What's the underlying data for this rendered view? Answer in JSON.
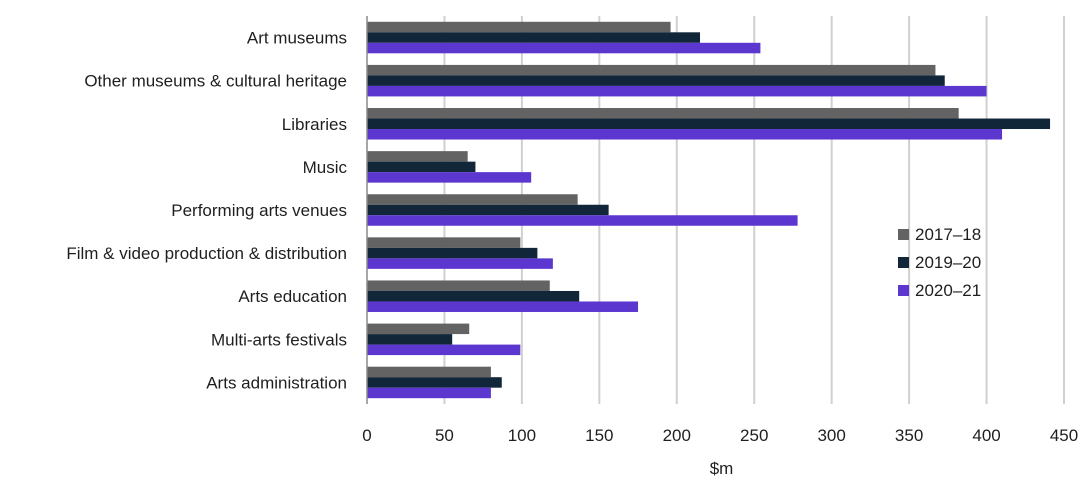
{
  "chart_data": {
    "type": "bar",
    "orientation": "horizontal",
    "title": "",
    "xlabel": "$m",
    "ylabel": "",
    "xlim": [
      0,
      450
    ],
    "xticks": [
      "0",
      "50",
      "100",
      "150",
      "200",
      "250",
      "300",
      "350",
      "400",
      "450"
    ],
    "grid": "vertical",
    "legend_position": "right",
    "categories": [
      "Art museums",
      "Other museums & cultural heritage",
      "Libraries",
      "Music",
      "Performing arts venues",
      "Film & video production & distribution",
      "Arts education",
      "Multi-arts festivals",
      "Arts administration"
    ],
    "series": [
      {
        "name": "2017–18",
        "color": "#636363",
        "values": [
          196,
          367,
          382,
          65,
          136,
          99,
          118,
          66,
          80
        ]
      },
      {
        "name": "2019–20",
        "color": "#12263a",
        "values": [
          215,
          373,
          441,
          70,
          156,
          110,
          137,
          55,
          87
        ]
      },
      {
        "name": "2020–21",
        "color": "#5b37d0",
        "values": [
          254,
          400,
          410,
          106,
          278,
          120,
          175,
          99,
          80
        ]
      }
    ]
  }
}
